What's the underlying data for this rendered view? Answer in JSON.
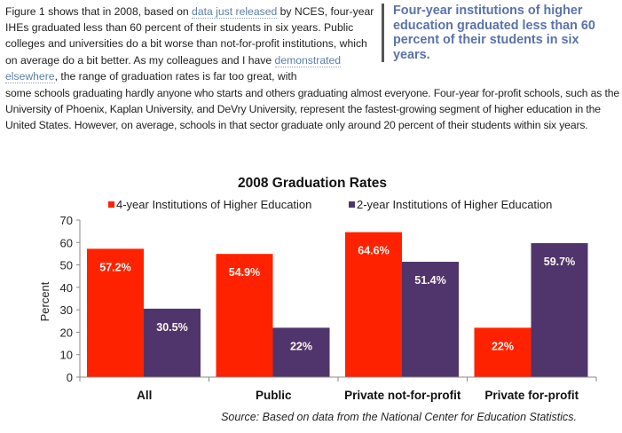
{
  "article": {
    "p1": {
      "t1": "Figure 1 shows that in 2008, based on ",
      "link1": "data just released",
      "t2": " by NCES, four-year IHEs graduated less than 60 percent of their students in six years. Public colleges and universities do a bit worse than not-for-profit institutions, which on average do a bit better. As my colleagues and I have ",
      "link2": "demonstrated elsewhere",
      "t3": ", the range of graduation rates is far too great, with"
    },
    "p2": "some schools graduating hardly anyone who starts and others graduating almost everyone. Four-year for-profit schools, such as the University of Phoenix, Kaplan University, and DeVry University, represent the fastest-growing segment of higher education in the United States. However, on average, schools in that sector graduate only around 20 percent of their students within six years.",
    "pullquote": "Four-year institutions of higher education graduated less than 60 percent of their students in six years."
  },
  "colors": {
    "four_year": "#ff2200",
    "two_year": "#4f356b",
    "link": "#5a7fa8",
    "pullquote": "#5a73a8",
    "axis": "#888888"
  },
  "chart_data": {
    "type": "bar",
    "title": "2008 Graduation Rates",
    "xlabel": "",
    "ylabel": "Percent",
    "ylim": [
      0,
      70
    ],
    "yticks": [
      0,
      10,
      20,
      30,
      40,
      50,
      60,
      70
    ],
    "grid": false,
    "legend_position": "top",
    "categories": [
      "All",
      "Public",
      "Private not-for-profit",
      "Private for-profit"
    ],
    "series": [
      {
        "name": "4-year Institutions of Higher Education",
        "values": [
          57.2,
          54.9,
          64.6,
          22
        ],
        "labels": [
          "57.2%",
          "54.9%",
          "64.6%",
          "22%"
        ]
      },
      {
        "name": "2-year Institutions of Higher Education",
        "values": [
          30.5,
          22,
          51.4,
          59.7
        ],
        "labels": [
          "30.5%",
          "22%",
          "51.4%",
          "59.7%"
        ]
      }
    ],
    "source": "Source: Based on data from the National Center for Education Statistics."
  }
}
